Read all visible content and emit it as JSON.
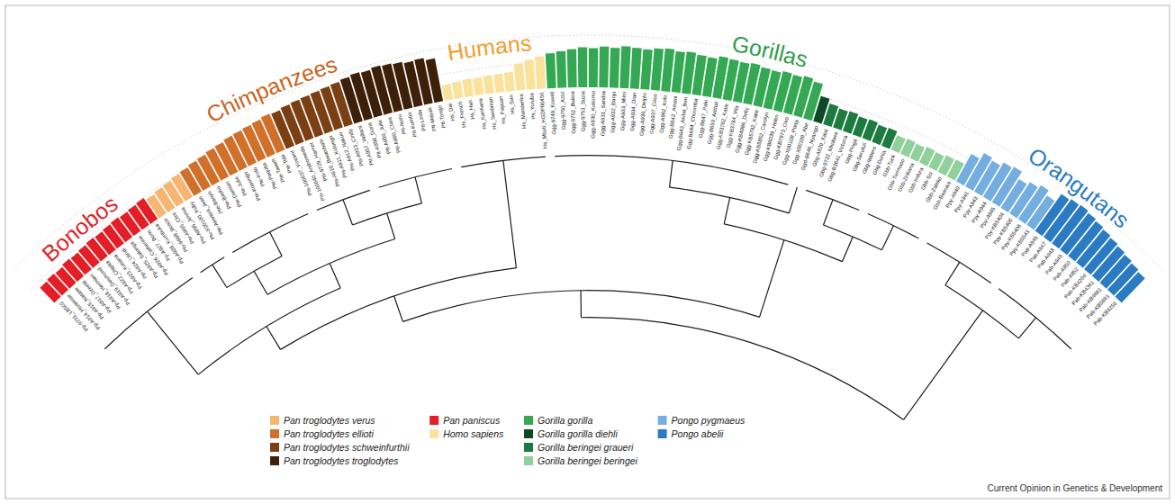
{
  "chart_data": {
    "type": "bar",
    "ylim": [
      0,
      60
    ],
    "yticks": [
      30,
      60
    ],
    "grid": true,
    "tick_labels": false,
    "legend": "bottom",
    "footer": "Current Opinion in Genetics & Development",
    "series": [
      {
        "name": "Pan paniscus",
        "color": "#e41e26",
        "categories": [
          "Pp-9731_LB502",
          "Pp-A914_Hortense",
          "Pp-A915_Natalie",
          "Pp-A917_Dzeeta",
          "Pp-A918_Hermien",
          "Pp-A919_Desmond",
          "Pp-A922_Chipita",
          "Pp-A923_Kosana",
          "Pp-A924_Ulindi",
          "Pp-A925_Salonga",
          "Pp-A926_Catherine",
          "Pp-A927_Bono",
          "Pp-A928_Kumbuka"
        ],
        "values": [
          24,
          25,
          24,
          26,
          25,
          26,
          27,
          26,
          27,
          28,
          27,
          28,
          29
        ]
      },
      {
        "name": "Pan troglodytes verus",
        "color": "#f7b572",
        "categories": [
          "Ptv-9668_Bosco",
          "Ptv-A955_Clint",
          "Ptv-A956_Jimmie",
          "Ptv-X00100_Koby"
        ],
        "values": [
          26,
          28,
          29,
          31
        ]
      },
      {
        "name": "Pan troglodytes ellioti",
        "color": "#d0702a",
        "categories": [
          "Pte-Akwaya_Jean",
          "Pte-Banyo",
          "Pte-Basho",
          "Pte-Damian",
          "Pte-Julie",
          "Pte-Kopongo",
          "Pte-Koto",
          "Pte-Paquita",
          "Pte-Taweh",
          "Pte-Tobi"
        ],
        "values": [
          32,
          34,
          35,
          37,
          38,
          40,
          41,
          42,
          43,
          45
        ]
      },
      {
        "name": "Pan troglodytes schweinfurthii",
        "color": "#7b3f14",
        "categories": [
          "Pts-100037_Vincent",
          "Pts-100040_Andromeda",
          "Pts-9729_Harriet",
          "Pts-A910_Bwambale",
          "Pts-A911_Kidongo",
          "Pts-A912_Nakuu",
          "Pts-A913_Cindy"
        ],
        "values": [
          44,
          46,
          47,
          48,
          49,
          50,
          51
        ]
      },
      {
        "name": "Pan troglodytes troglodytes",
        "color": "#3d2009",
        "categories": [
          "Ptt-A957_Vaillant",
          "Ptt-A958_Doris",
          "Ptt-A959_Julie",
          "Ptt-A960_Clara",
          "Ptt-Ikuru",
          "Ptt-Kumbo",
          "Ptt-Linda",
          "Ptt-Mayas",
          "Ptt-Tongo"
        ],
        "values": [
          53,
          55,
          54,
          56,
          55,
          54,
          52,
          53,
          50
        ]
      },
      {
        "name": "Homo sapiens",
        "color": "#fbe29c",
        "categories": [
          "Hs_Dai",
          "Hs_French",
          "Hs_Han",
          "Hs_Karitiana",
          "Hs_Sardinian",
          "Hs_Papuan",
          "Hs_San",
          "Hs_Mandenka",
          "Hs_Yoruba",
          "Hs_Mbuti_HGDP00456"
        ],
        "values": [
          18,
          19,
          20,
          20,
          21,
          21,
          22,
          31,
          34,
          37
        ]
      },
      {
        "name": "Gorilla gorilla",
        "color": "#34a853",
        "categories": [
          "Ggg-9749_Kowali",
          "Ggg-9750_Azizi",
          "Ggg-9752_Bulera",
          "Ggg-9753_Suzie",
          "Ggg-A930_Kokomo",
          "Ggg-A931_Sandra",
          "Ggg-A932_Banjo",
          "Ggg-A933_Mimi",
          "Ggg-A934_Dian",
          "Ggg-A936_Delphi",
          "Ggg-A937_Coco",
          "Ggg-A962_Kolo",
          "Ggg-B642_Amani",
          "Ggg-B643_Akiba_Beri",
          "Ggg-B644_Choomba",
          "Ggg-B647_Paki",
          "Ggg-B650_Anthal",
          "Ggg-KB3782_Katie",
          "Ggg-KB3784_Vila",
          "Ggg-KB4986_Dolly",
          "Ggg-KB5792_Katie",
          "Ggg-KB5852_Carolyn",
          "Ggg-KB6039_Helen",
          "Ggg-KB7973_Oko",
          "Ggg-X00108_Porta",
          "Ggg-X00109_Abe"
        ],
        "values": [
          40,
          42,
          44,
          46,
          45,
          47,
          46,
          48,
          47,
          46,
          48,
          49,
          47,
          48,
          46,
          45,
          48,
          47,
          46,
          47,
          45,
          44,
          46,
          45,
          47,
          44
        ]
      },
      {
        "name": "Gorilla gorilla diehli",
        "color": "#0c4a26",
        "categories": [
          "Ggd-B646_Nyango"
        ],
        "values": [
          30
        ]
      },
      {
        "name": "Gorilla beringei graueri",
        "color": "#1d7a40",
        "categories": [
          "Gbg-A929_Kaisi",
          "Gbg-9732_Mkubwa",
          "Gbg-B3641_Victoria",
          "Gbg-Pinga",
          "Gbg-Serufuli",
          "Gbg-Itebero",
          "Gbg-Dunia"
        ],
        "values": [
          25,
          23,
          24,
          22,
          23,
          21,
          22
        ]
      },
      {
        "name": "Gorilla beringei beringei",
        "color": "#8fd09b",
        "categories": [
          "Gbb-Tuck",
          "Gbb-Turimaso",
          "Gbb-Zirikana",
          "Gbb-Imfura",
          "Gbb-Sci",
          "Gbb-Zaleko",
          "Gbb-Bwiruka"
        ],
        "values": [
          18,
          19,
          18,
          20,
          19,
          21,
          22
        ]
      },
      {
        "name": "Pongo pygmaeus",
        "color": "#74aee0",
        "categories": [
          "Ppy-A940",
          "Ppy-A941",
          "Ppy-A943",
          "Ppy-A944",
          "Ppy-A945",
          "Ppy-KB5404",
          "Ppy-KB5405",
          "Ppy-KB5406",
          "Ppy-KB5543"
        ],
        "values": [
          36,
          44,
          41,
          46,
          48,
          39,
          43,
          47,
          41
        ]
      },
      {
        "name": "Pongo abelii",
        "color": "#2b7bc2",
        "categories": [
          "Pab-A946",
          "Pab-A947",
          "Pab-A948",
          "Pab-A949",
          "Pab-A950",
          "Pab-A952",
          "Pab-KB4204",
          "Pab-KB4361",
          "Pab-KB4661",
          "Pab-KB5883",
          "Pab-KB9258"
        ],
        "values": [
          52,
          54,
          55,
          53,
          51,
          49,
          47,
          45,
          43,
          41,
          39
        ]
      }
    ],
    "groups": [
      {
        "name": "Bonobos",
        "color": "#e41e26",
        "series": [
          "Pan paniscus"
        ]
      },
      {
        "name": "Chimpanzees",
        "color": "#c9641e",
        "series": [
          "Pan troglodytes verus",
          "Pan troglodytes ellioti",
          "Pan troglodytes schweinfurthii",
          "Pan troglodytes troglodytes"
        ]
      },
      {
        "name": "Humans",
        "color": "#f39c2e",
        "series": [
          "Homo sapiens"
        ]
      },
      {
        "name": "Gorillas",
        "color": "#2e9e4a",
        "series": [
          "Gorilla gorilla",
          "Gorilla gorilla diehli",
          "Gorilla beringei graueri",
          "Gorilla beringei beringei"
        ]
      },
      {
        "name": "Orangutans",
        "color": "#2b7bc2",
        "series": [
          "Pongo pygmaeus",
          "Pongo abelii"
        ]
      }
    ],
    "tree": [
      [
        [
          [
            "Pan paniscus",
            [
              [
                "Pan troglodytes verus",
                "Pan troglodytes ellioti"
              ],
              [
                "Pan troglodytes schweinfurthii",
                "Pan troglodytes troglodytes"
              ]
            ]
          ],
          "Homo sapiens"
        ],
        [
          [
            "Gorilla gorilla",
            "Gorilla gorilla diehli"
          ],
          [
            "Gorilla beringei graueri",
            "Gorilla beringei beringei"
          ]
        ]
      ],
      [
        "Pongo pygmaeus",
        "Pongo abelii"
      ]
    ]
  }
}
